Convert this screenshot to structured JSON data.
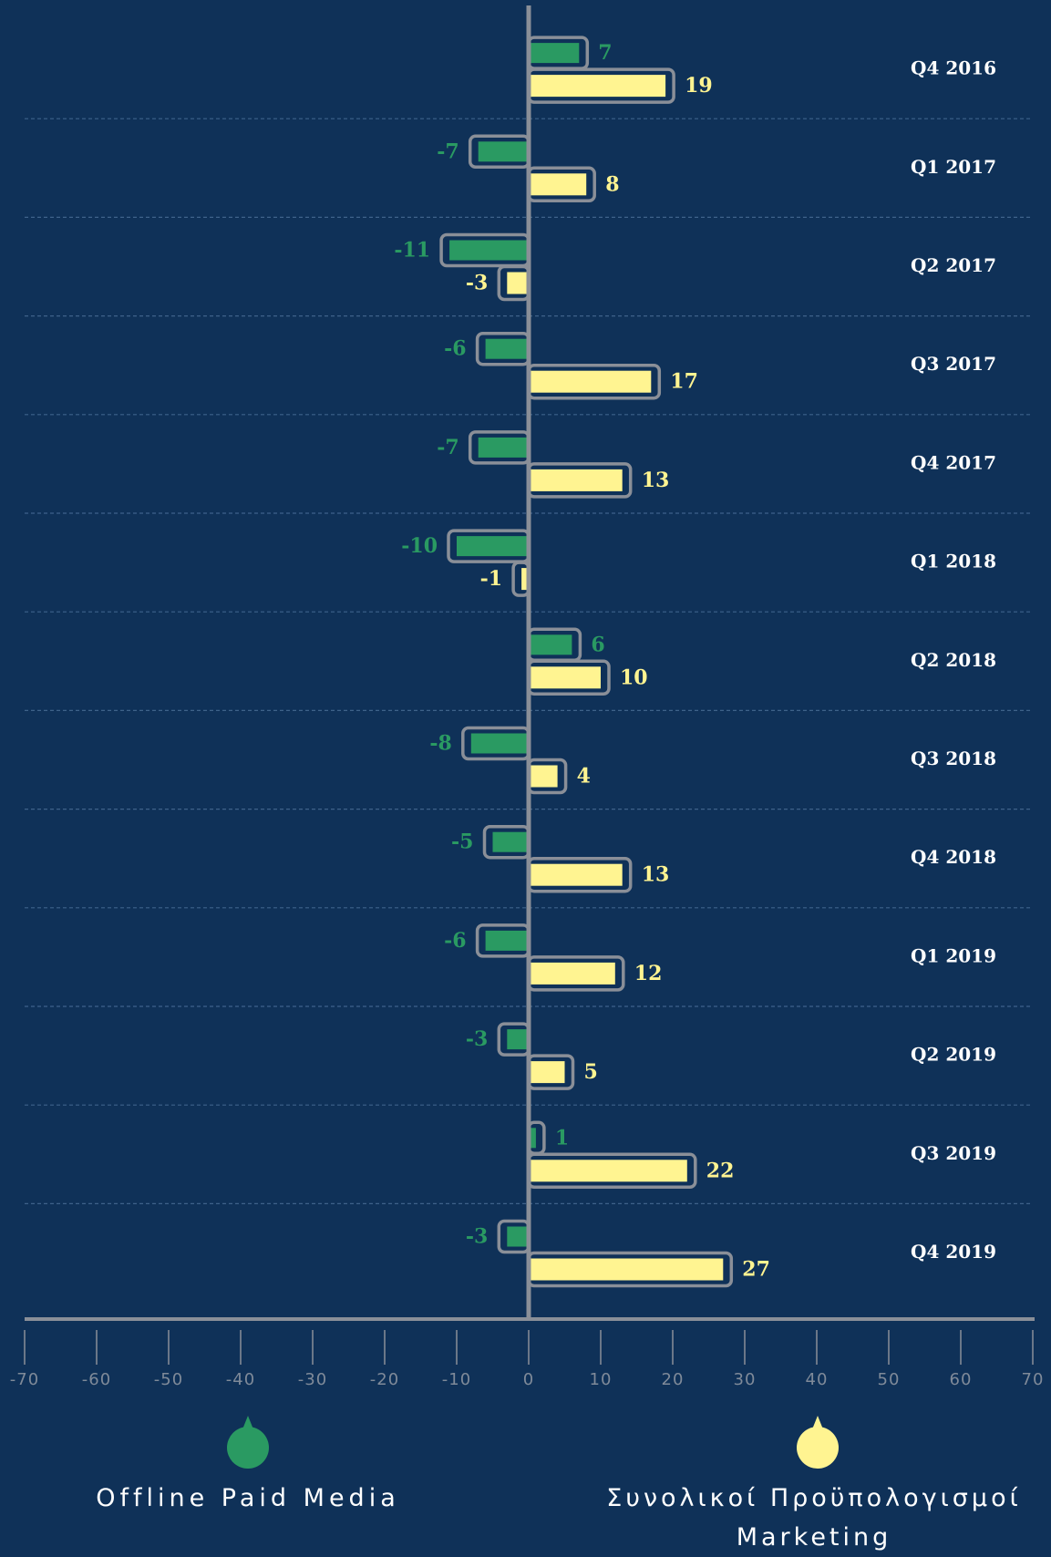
{
  "chart_data": {
    "type": "bar",
    "orientation": "horizontal",
    "categories": [
      "Q4 2016",
      "Q1 2017",
      "Q2 2017",
      "Q3 2017",
      "Q4 2017",
      "Q1 2018",
      "Q2 2018",
      "Q3 2018",
      "Q4 2018",
      "Q1 2019",
      "Q2 2019",
      "Q3 2019",
      "Q4 2019"
    ],
    "series": [
      {
        "name": "Offline Paid Media",
        "color": "#2a9a62",
        "values": [
          7,
          -7,
          -11,
          -6,
          -7,
          -10,
          6,
          -8,
          -5,
          -6,
          -3,
          1,
          -3
        ]
      },
      {
        "name": "Συνολικοί Προϋπολογισμοί Marketing",
        "color": "#fff491",
        "values": [
          19,
          8,
          -3,
          17,
          13,
          -1,
          10,
          4,
          13,
          12,
          5,
          22,
          27
        ]
      }
    ],
    "xlim": [
      -70,
      70
    ],
    "xticks": [
      -70,
      -60,
      -50,
      -40,
      -30,
      -20,
      -10,
      0,
      10,
      20,
      30,
      40,
      50,
      60,
      70
    ],
    "grid": true
  }
}
